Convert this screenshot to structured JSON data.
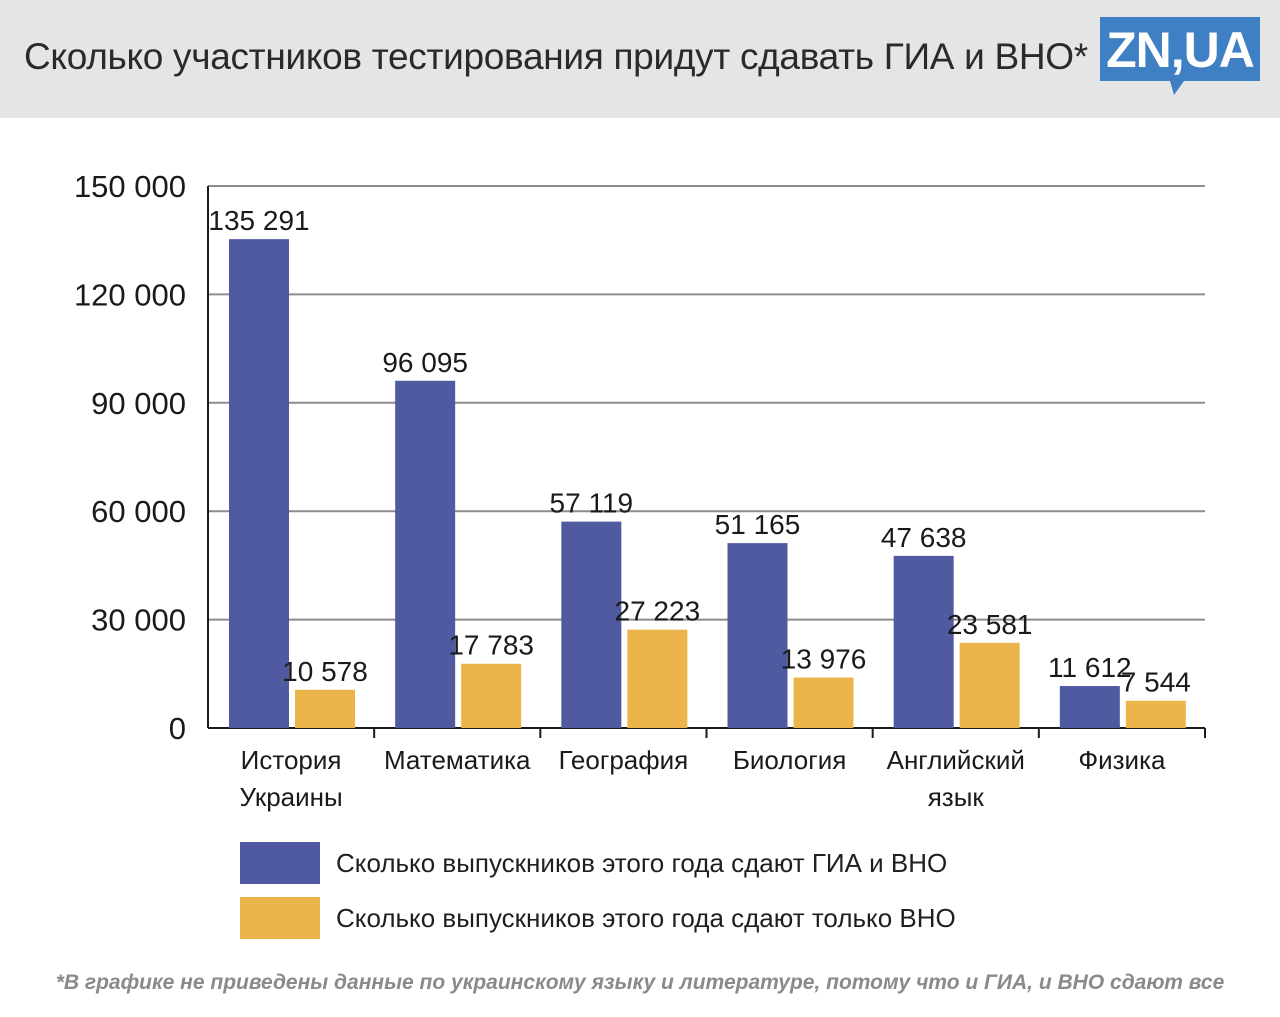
{
  "title": "Сколько участников тестирования придут сдавать ГИА и ВНО*",
  "logo_text": "ZN,UA",
  "colors": {
    "header_bg": "#e5e5e5",
    "logo_bg": "#3f7fc4",
    "series1": "#4f5aa1",
    "series2": "#ebb54b",
    "grid": "#8c8c8c"
  },
  "chart_data": {
    "type": "bar",
    "categories": [
      [
        "История",
        "Украины"
      ],
      [
        "Математика"
      ],
      [
        "География"
      ],
      [
        "Биология"
      ],
      [
        "Английский",
        "язык"
      ],
      [
        "Физика"
      ]
    ],
    "series": [
      {
        "name": "Сколько выпускников этого года сдают ГИА и ВНО",
        "values": [
          135291,
          96095,
          57119,
          51165,
          47638,
          11612
        ],
        "labels": [
          "135 291",
          "96 095",
          "57 119",
          "51 165",
          "47 638",
          "11 612"
        ]
      },
      {
        "name": "Сколько выпускников этого года сдают только  ВНО",
        "values": [
          10578,
          17783,
          27223,
          13976,
          23581,
          7544
        ],
        "labels": [
          "10 578",
          "17 783",
          "27 223",
          "13 976",
          "23 581",
          "7 544"
        ]
      }
    ],
    "ylim": [
      0,
      150000
    ],
    "yticks": [
      0,
      30000,
      60000,
      90000,
      120000,
      150000
    ],
    "ytick_labels": [
      "0",
      "30 000",
      "60 000",
      "90 000",
      "120 000",
      "150 000"
    ],
    "grid": true,
    "legend": "bottom"
  },
  "footnote": "*В графике не приведены данные по украинскому языку и литературе, потому что и ГИА, и ВНО сдают все"
}
